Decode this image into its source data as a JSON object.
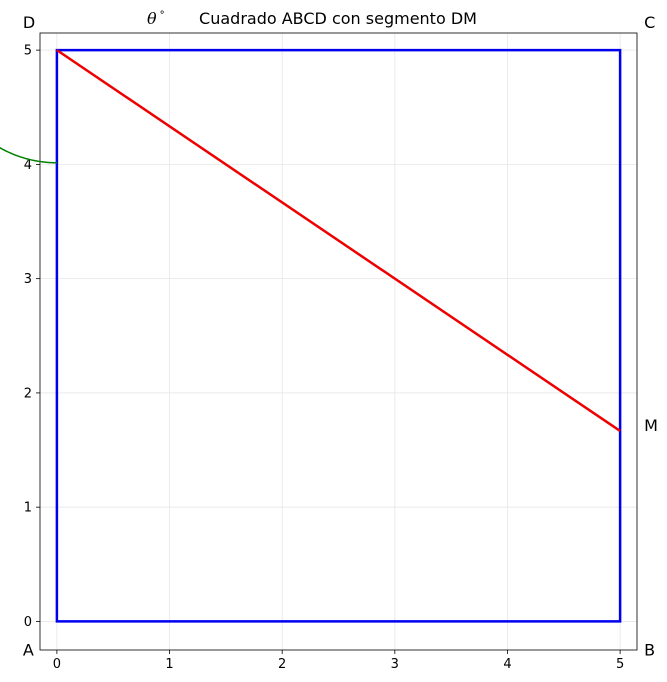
{
  "chart_data": {
    "type": "geometry",
    "title": "Cuadrado ABCD con segmento DM",
    "angle_label": "θ",
    "angle_label_suffix": "°",
    "xlim": [
      -0.15,
      5.15
    ],
    "ylim": [
      -0.25,
      5.15
    ],
    "x_ticks": [
      0,
      1,
      2,
      3,
      4,
      5
    ],
    "y_ticks": [
      0,
      1,
      2,
      3,
      4,
      5
    ],
    "grid": true,
    "square": {
      "color": "#0000ee",
      "vertices": [
        {
          "name": "A",
          "x": 0,
          "y": 0
        },
        {
          "name": "B",
          "x": 5,
          "y": 0
        },
        {
          "name": "C",
          "x": 5,
          "y": 5
        },
        {
          "name": "D",
          "x": 0,
          "y": 5
        }
      ]
    },
    "segment": {
      "name": "DM",
      "color": "#ee0000",
      "from": {
        "x": 0,
        "y": 5
      },
      "to": {
        "x": 5,
        "y": 1.667
      }
    },
    "point_m": {
      "name": "M",
      "x": 5,
      "y": 1.667
    },
    "angle_arc": {
      "color": "#008000",
      "center": {
        "x": 0,
        "y": 5
      },
      "radius": 1,
      "start_deg": -33.69,
      "end_deg": 0
    }
  }
}
